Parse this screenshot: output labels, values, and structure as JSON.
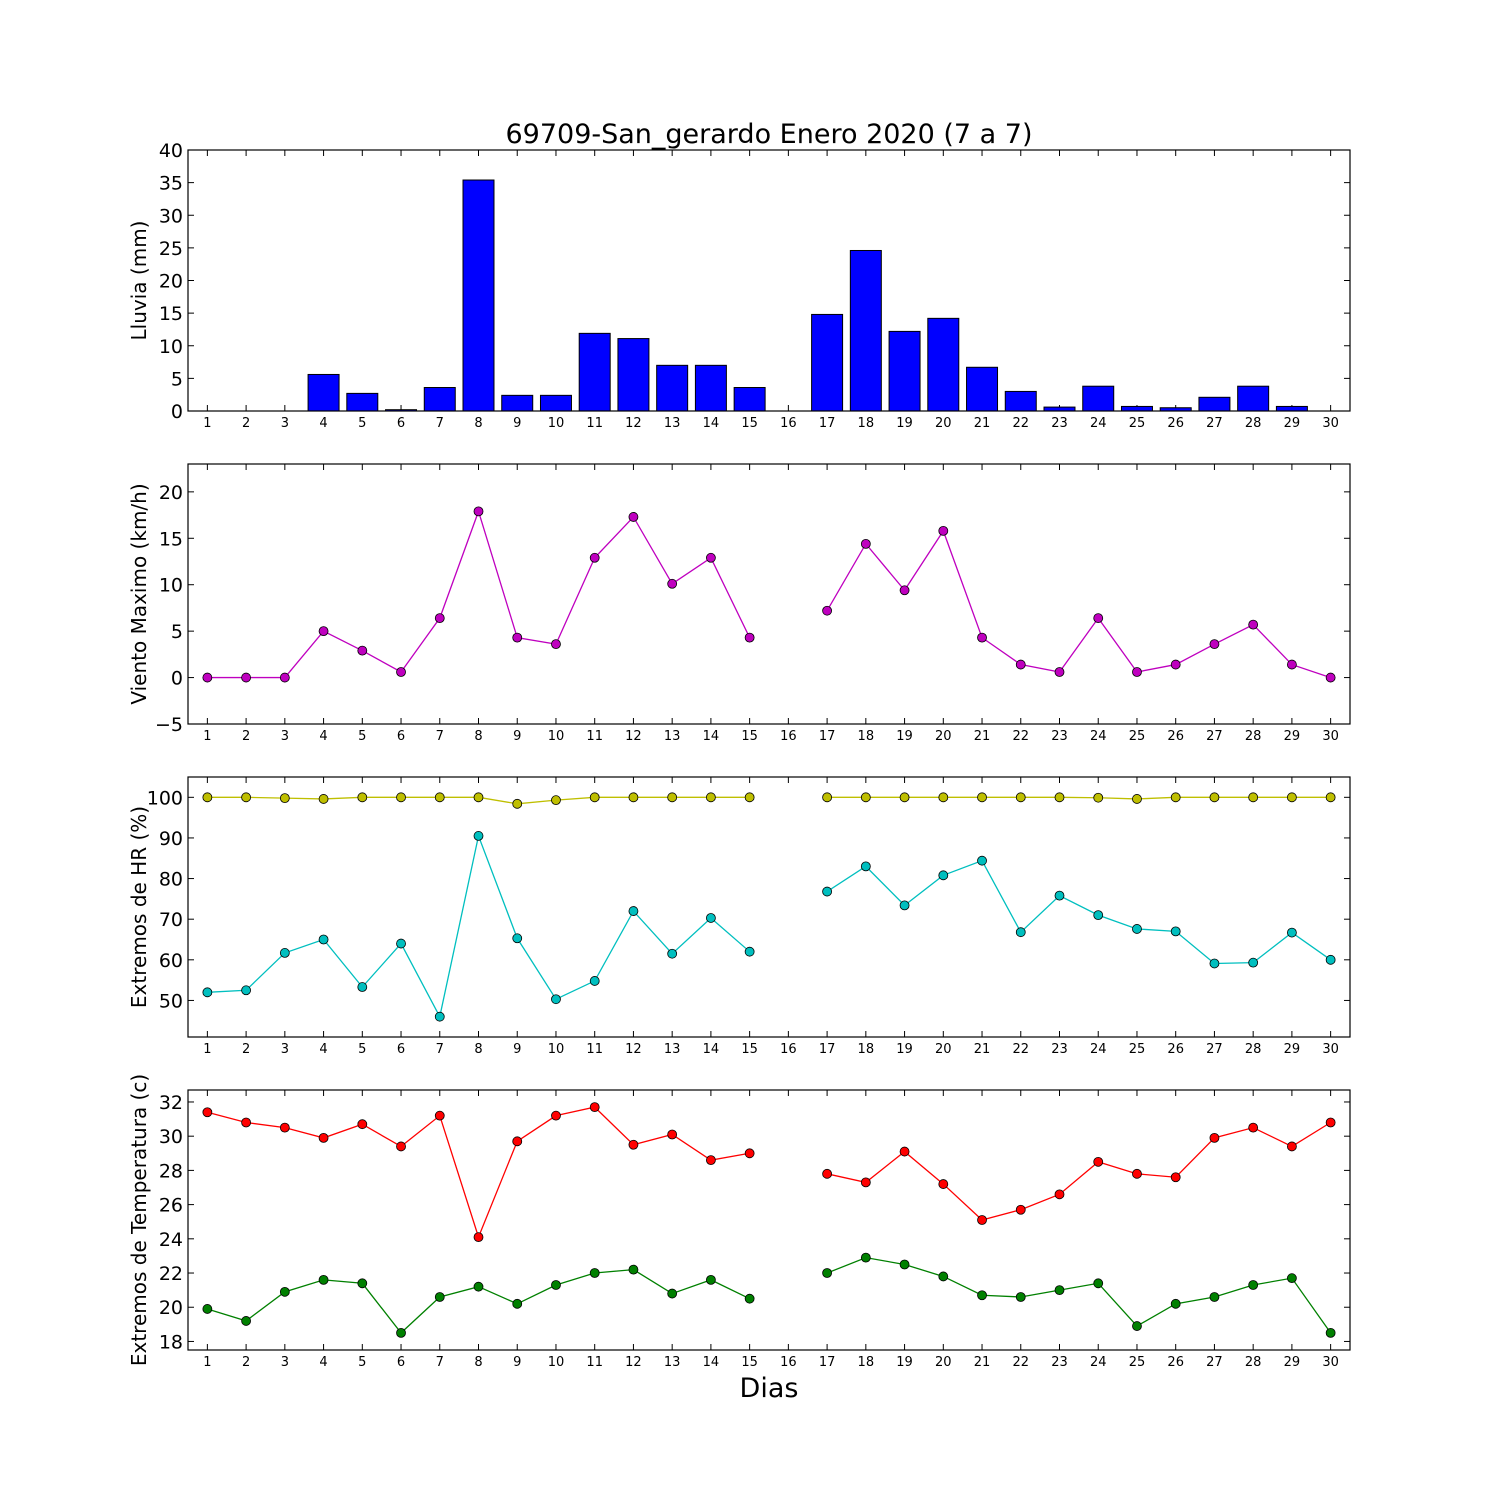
{
  "title": "69709-San_gerardo Enero 2020  (7 a 7)",
  "xlabel": "Dias",
  "days": [
    1,
    2,
    3,
    4,
    5,
    6,
    7,
    8,
    9,
    10,
    11,
    12,
    13,
    14,
    15,
    16,
    17,
    18,
    19,
    20,
    21,
    22,
    23,
    24,
    25,
    26,
    27,
    28,
    29,
    30
  ],
  "chart_data": [
    {
      "type": "bar",
      "ylabel": "Lluvia (mm)",
      "ylim": [
        0,
        40
      ],
      "yticks": [
        0,
        5,
        10,
        15,
        20,
        25,
        30,
        35,
        40
      ],
      "color": "#0000ff",
      "categories": [
        1,
        2,
        3,
        4,
        5,
        6,
        7,
        8,
        9,
        10,
        11,
        12,
        13,
        14,
        15,
        16,
        17,
        18,
        19,
        20,
        21,
        22,
        23,
        24,
        25,
        26,
        27,
        28,
        29,
        30
      ],
      "values": [
        0,
        0,
        0,
        5.6,
        2.7,
        0.2,
        3.6,
        35.4,
        2.4,
        2.4,
        11.9,
        11.1,
        7.0,
        7.0,
        3.6,
        0,
        14.8,
        24.6,
        12.2,
        14.2,
        6.7,
        3.0,
        0.6,
        3.8,
        0.7,
        0.5,
        2.1,
        3.8,
        0.7,
        0
      ]
    },
    {
      "type": "line",
      "ylabel": "Viento Maximo (km/h)",
      "ylim": [
        -5,
        23
      ],
      "yticks": [
        -5,
        0,
        5,
        10,
        15,
        20
      ],
      "x": [
        1,
        2,
        3,
        4,
        5,
        6,
        7,
        8,
        9,
        10,
        11,
        12,
        13,
        14,
        15,
        16,
        17,
        18,
        19,
        20,
        21,
        22,
        23,
        24,
        25,
        26,
        27,
        28,
        29,
        30
      ],
      "series": [
        {
          "color": "#bf00bf",
          "values": [
            0,
            0,
            0,
            5.0,
            2.9,
            0.6,
            6.4,
            17.9,
            4.3,
            3.6,
            12.9,
            17.3,
            10.1,
            12.9,
            4.3,
            null,
            7.2,
            14.4,
            9.4,
            15.8,
            4.3,
            1.4,
            0.6,
            6.4,
            0.6,
            1.4,
            3.6,
            5.7,
            1.4,
            0
          ]
        }
      ]
    },
    {
      "type": "line",
      "ylabel": "Extremos de HR (%)",
      "ylim": [
        41,
        105
      ],
      "yticks": [
        50,
        60,
        70,
        80,
        90,
        100
      ],
      "x": [
        1,
        2,
        3,
        4,
        5,
        6,
        7,
        8,
        9,
        10,
        11,
        12,
        13,
        14,
        15,
        16,
        17,
        18,
        19,
        20,
        21,
        22,
        23,
        24,
        25,
        26,
        27,
        28,
        29,
        30
      ],
      "series": [
        {
          "color": "#bfbf00",
          "values": [
            100,
            100,
            99.8,
            99.6,
            100,
            100,
            100,
            100,
            98.4,
            99.3,
            100,
            100,
            100,
            100,
            100,
            null,
            100,
            100,
            100,
            100,
            100,
            100,
            100,
            99.9,
            99.6,
            100,
            100,
            100,
            100,
            100
          ]
        },
        {
          "color": "#00bfbf",
          "values": [
            52,
            52.5,
            61.7,
            65,
            53.3,
            64,
            46,
            90.5,
            65.3,
            50.3,
            54.8,
            72,
            61.5,
            70.3,
            62,
            null,
            76.8,
            83,
            73.4,
            80.8,
            84.4,
            66.8,
            75.8,
            71,
            67.6,
            67,
            59.1,
            59.3,
            66.7,
            60
          ]
        }
      ]
    },
    {
      "type": "line",
      "ylabel": "Extremos de Temperatura (c)",
      "ylim": [
        17.5,
        32.7
      ],
      "yticks": [
        18,
        20,
        22,
        24,
        26,
        28,
        30,
        32
      ],
      "x": [
        1,
        2,
        3,
        4,
        5,
        6,
        7,
        8,
        9,
        10,
        11,
        12,
        13,
        14,
        15,
        16,
        17,
        18,
        19,
        20,
        21,
        22,
        23,
        24,
        25,
        26,
        27,
        28,
        29,
        30
      ],
      "series": [
        {
          "color": "#ff0000",
          "values": [
            31.4,
            30.8,
            30.5,
            29.9,
            30.7,
            29.4,
            31.2,
            24.1,
            29.7,
            31.2,
            31.7,
            29.5,
            30.1,
            28.6,
            29.0,
            null,
            27.8,
            27.3,
            29.1,
            27.2,
            25.1,
            25.7,
            26.6,
            28.5,
            27.8,
            27.6,
            29.9,
            30.5,
            29.4,
            30.8
          ]
        },
        {
          "color": "#008000",
          "values": [
            19.9,
            19.2,
            20.9,
            21.6,
            21.4,
            18.5,
            20.6,
            21.2,
            20.2,
            21.3,
            22.0,
            22.2,
            20.8,
            21.6,
            20.5,
            null,
            22.0,
            22.9,
            22.5,
            21.8,
            20.7,
            20.6,
            21.0,
            21.4,
            18.9,
            20.2,
            20.6,
            21.3,
            21.7,
            18.5
          ]
        }
      ]
    }
  ]
}
